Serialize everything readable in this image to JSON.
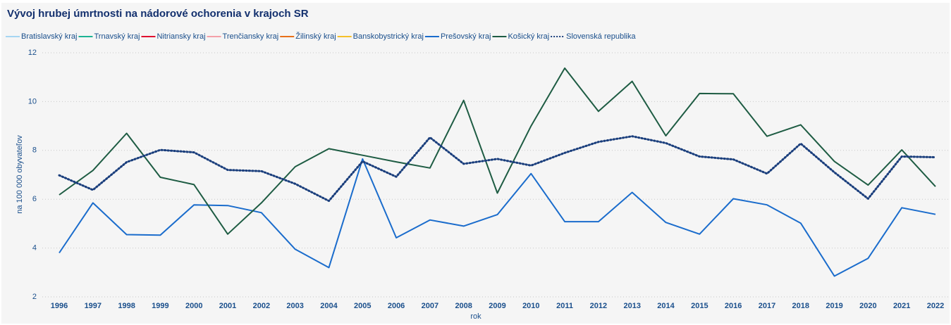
{
  "chart_data": {
    "type": "line",
    "title": "Vývoj hrubej úmrtnosti na nádorové ochorenia v krajoch SR",
    "x_label": "rok",
    "y_label": "na 100 000 obyvateľov",
    "categories": [
      "1996",
      "1997",
      "1998",
      "1999",
      "2000",
      "2001",
      "2002",
      "2003",
      "2004",
      "2005",
      "2006",
      "2007",
      "2008",
      "2009",
      "2010",
      "2011",
      "2012",
      "2013",
      "2014",
      "2015",
      "2016",
      "2017",
      "2018",
      "2019",
      "2020",
      "2021",
      "2022"
    ],
    "ylim": [
      2,
      12
    ],
    "yticks": [
      2,
      4,
      6,
      8,
      10,
      12
    ],
    "grid": true,
    "legend": "top",
    "series": [
      {
        "name": "Bratislavský kraj",
        "color": "#a6d6f2",
        "values": [
          null,
          null,
          null,
          null,
          null,
          null,
          null,
          null,
          null,
          null,
          null,
          null,
          null,
          null,
          null,
          null,
          null,
          null,
          null,
          null,
          null,
          null,
          null,
          null,
          null,
          null,
          null
        ]
      },
      {
        "name": "Trnavský kraj",
        "color": "#1db394",
        "values": [
          null,
          null,
          null,
          null,
          null,
          null,
          null,
          null,
          null,
          null,
          null,
          null,
          null,
          null,
          null,
          null,
          null,
          null,
          null,
          null,
          null,
          null,
          null,
          null,
          null,
          null,
          null
        ]
      },
      {
        "name": "Nitriansky kraj",
        "color": "#e0102f",
        "values": [
          null,
          null,
          null,
          null,
          null,
          null,
          null,
          null,
          null,
          null,
          null,
          null,
          null,
          null,
          null,
          null,
          null,
          null,
          null,
          null,
          null,
          null,
          null,
          null,
          null,
          null,
          null
        ]
      },
      {
        "name": "Trenčiansky kraj",
        "color": "#f4a0a8",
        "values": [
          null,
          null,
          null,
          null,
          null,
          null,
          null,
          null,
          null,
          null,
          null,
          null,
          null,
          null,
          null,
          null,
          null,
          null,
          null,
          null,
          null,
          null,
          null,
          null,
          null,
          null,
          null
        ]
      },
      {
        "name": "Žilinský kraj",
        "color": "#e8701a",
        "values": [
          null,
          null,
          null,
          null,
          null,
          null,
          null,
          null,
          null,
          null,
          null,
          null,
          null,
          null,
          null,
          null,
          null,
          null,
          null,
          null,
          null,
          null,
          null,
          null,
          null,
          null,
          null
        ]
      },
      {
        "name": "Banskobystrický kraj",
        "color": "#f5c02a",
        "values": [
          null,
          null,
          null,
          null,
          null,
          null,
          null,
          null,
          null,
          null,
          null,
          null,
          null,
          null,
          null,
          null,
          null,
          null,
          null,
          null,
          null,
          null,
          null,
          null,
          null,
          null,
          null
        ]
      },
      {
        "name": "Prešovský kraj",
        "color": "#1a6ccc",
        "values": [
          3.8,
          5.85,
          4.55,
          4.53,
          5.77,
          5.74,
          5.45,
          3.95,
          3.2,
          7.65,
          4.42,
          5.15,
          4.9,
          5.37,
          7.05,
          5.08,
          5.08,
          6.28,
          5.05,
          4.57,
          6.02,
          5.77,
          5.02,
          2.85,
          3.58,
          5.65,
          5.38
        ]
      },
      {
        "name": "Košický kraj",
        "color": "#1e5c43",
        "values": [
          6.18,
          7.18,
          8.7,
          6.9,
          6.6,
          4.57,
          5.85,
          7.33,
          8.07,
          7.8,
          7.53,
          7.28,
          10.05,
          6.25,
          9.0,
          11.37,
          9.6,
          10.83,
          8.6,
          10.33,
          10.32,
          8.58,
          9.05,
          7.55,
          6.58,
          8.02,
          6.52
        ]
      },
      {
        "name": "Slovenská republika",
        "color": "#1a3e7c",
        "dotted": true,
        "values": [
          6.98,
          6.38,
          7.52,
          8.02,
          7.92,
          7.2,
          7.15,
          6.63,
          5.93,
          7.55,
          6.92,
          8.53,
          7.45,
          7.65,
          7.38,
          7.9,
          8.35,
          8.58,
          8.3,
          7.75,
          7.63,
          7.05,
          8.28,
          7.1,
          6.02,
          7.75,
          7.72
        ]
      }
    ]
  }
}
